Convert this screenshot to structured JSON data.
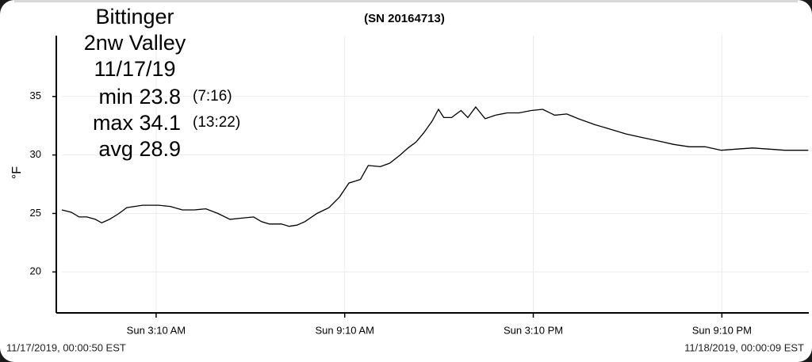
{
  "chart_data": {
    "type": "line",
    "title": "(SN 20164713)",
    "header_lines": [
      "Bittinger",
      "2nw Valley",
      "11/17/19"
    ],
    "stats": [
      {
        "label": "min 23.8",
        "time": "(7:16)"
      },
      {
        "label": "max 34.1",
        "time": "(13:22)"
      },
      {
        "label": "avg 28.9"
      }
    ],
    "y_label": "°F",
    "start_label": "11/17/2019, 00:00:50 EST",
    "end_label": "11/18/2019, 00:00:09 EST",
    "xlim": [
      10,
      1436
    ],
    "xticks": [
      {
        "value": 190,
        "label": "Sun 3:10 AM"
      },
      {
        "value": 550,
        "label": "Sun 9:10 AM"
      },
      {
        "value": 910,
        "label": "Sun 3:10 PM"
      },
      {
        "value": 1270,
        "label": "Sun 9:10 PM"
      }
    ],
    "ylim": [
      16.5,
      40.2
    ],
    "yticks": [
      20,
      25,
      30,
      35
    ],
    "grid": true,
    "series": [
      {
        "color": "#000000",
        "x": [
          10,
          28,
          43,
          58,
          74,
          86,
          101,
          119,
          134,
          164,
          195,
          217,
          240,
          263,
          285,
          308,
          331,
          353,
          376,
          391,
          406,
          429,
          444,
          459,
          474,
          497,
          520,
          540,
          558,
          580,
          595,
          618,
          636,
          656,
          671,
          686,
          701,
          717,
          729,
          739,
          754,
          772,
          785,
          800,
          818,
          838,
          860,
          883,
          906,
          928,
          951,
          974,
          996,
          1027,
          1057,
          1087,
          1117,
          1148,
          1178,
          1208,
          1238,
          1269,
          1299,
          1329,
          1359,
          1390,
          1435
        ],
        "values": [
          25.3,
          25.1,
          24.7,
          24.7,
          24.5,
          24.2,
          24.5,
          25.0,
          25.5,
          25.7,
          25.7,
          25.6,
          25.3,
          25.3,
          25.4,
          25.0,
          24.5,
          24.6,
          24.7,
          24.3,
          24.1,
          24.1,
          23.9,
          24.0,
          24.3,
          25.0,
          25.5,
          26.4,
          27.6,
          27.9,
          29.1,
          29.0,
          29.3,
          30.0,
          30.6,
          31.1,
          31.9,
          32.9,
          33.9,
          33.2,
          33.2,
          33.8,
          33.2,
          34.1,
          33.1,
          33.4,
          33.6,
          33.6,
          33.8,
          33.9,
          33.4,
          33.5,
          33.1,
          32.6,
          32.2,
          31.8,
          31.5,
          31.2,
          30.9,
          30.7,
          30.7,
          30.4,
          30.5,
          30.6,
          30.5,
          30.4,
          30.4
        ]
      }
    ]
  }
}
